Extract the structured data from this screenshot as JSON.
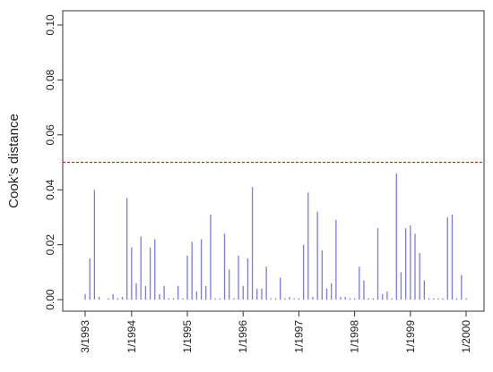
{
  "chart_data": {
    "type": "needle",
    "y_label": "Cook’s distance",
    "categories": [
      "3/1993",
      null,
      null,
      null,
      null,
      null,
      null,
      null,
      null,
      null,
      "1/1994",
      null,
      null,
      null,
      null,
      null,
      null,
      null,
      null,
      null,
      null,
      null,
      "1/1995",
      null,
      null,
      null,
      null,
      null,
      null,
      null,
      null,
      null,
      null,
      null,
      "1/1996",
      null,
      null,
      null,
      null,
      null,
      null,
      null,
      null,
      null,
      null,
      null,
      "1/1997",
      null,
      null,
      null,
      null,
      null,
      null,
      null,
      null,
      null,
      null,
      null,
      "1/1998",
      null,
      null,
      null,
      null,
      null,
      null,
      null,
      null,
      null,
      null,
      null,
      "1/1999",
      null,
      null,
      null,
      null,
      null,
      null,
      null,
      null,
      null,
      null,
      null,
      "1/2000"
    ],
    "values": [
      0.002,
      0.015,
      0.04,
      0.001,
      0,
      0.0005,
      0.002,
      0.0005,
      0.001,
      0.037,
      0.019,
      0.006,
      0.023,
      0.005,
      0.019,
      0.022,
      0.002,
      0.005,
      0.0005,
      0.0005,
      0.005,
      0.0005,
      0.016,
      0.021,
      0.003,
      0.022,
      0.005,
      0.031,
      0.0005,
      0.0005,
      0.024,
      0.011,
      0.0005,
      0.016,
      0.005,
      0.015,
      0.041,
      0.004,
      0.004,
      0.012,
      0.0005,
      0.0005,
      0.008,
      0.0005,
      0.001,
      0.0005,
      0.0005,
      0.02,
      0.039,
      0.001,
      0.032,
      0.018,
      0.004,
      0.006,
      0.029,
      0.001,
      0.001,
      0.0005,
      0.0005,
      0.012,
      0.007,
      0.0005,
      0.0005,
      0.026,
      0.002,
      0.003,
      0.0005,
      0.046,
      0.01,
      0.026,
      0.027,
      0.024,
      0.017,
      0.007,
      0.0005,
      0.0005,
      0.0005,
      0.0005,
      0.03,
      0.031,
      0.0005,
      0.009,
      0.0005
    ],
    "color": "#7b7be0",
    "threshold": 0.05,
    "threshold_color": "#e02020",
    "ylim": [
      -0.0042,
      0.1052
    ],
    "yticks": [
      {
        "value": 0,
        "label": "0.00"
      },
      {
        "value": 0.02,
        "label": "0.02"
      },
      {
        "value": 0.04,
        "label": "0.04"
      },
      {
        "value": 0.06,
        "label": "0.06"
      },
      {
        "value": 0.08,
        "label": "0.08"
      },
      {
        "value": 0.1,
        "label": "0.10"
      }
    ]
  }
}
